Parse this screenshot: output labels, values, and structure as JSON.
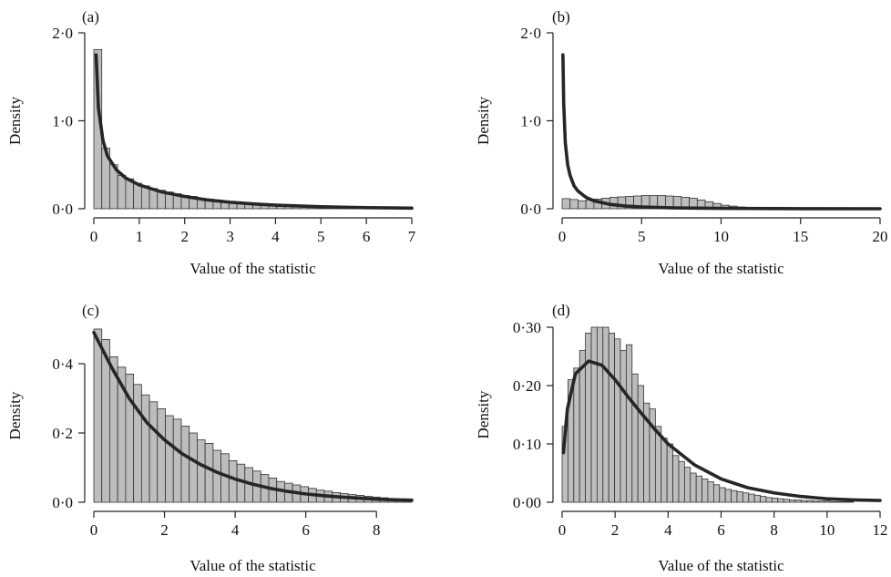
{
  "chart_data": [
    {
      "panel": "(a)",
      "type": "bar",
      "title": "",
      "xlabel": "Value of the statistic",
      "ylabel": "Density",
      "xlim": [
        0,
        7
      ],
      "ylim": [
        0,
        2.0
      ],
      "xticks": [
        0,
        1,
        2,
        3,
        4,
        5,
        6,
        7
      ],
      "xtick_labels": [
        "0",
        "1",
        "2",
        "3",
        "4",
        "5",
        "6",
        "7"
      ],
      "yticks": [
        0,
        1,
        2
      ],
      "ytick_labels": [
        "0·0",
        "1·0",
        "2·0"
      ],
      "histogram": {
        "bin_start": 0,
        "bin_width": 0.175,
        "values": [
          1.81,
          0.69,
          0.5,
          0.38,
          0.34,
          0.29,
          0.26,
          0.23,
          0.21,
          0.19,
          0.17,
          0.15,
          0.14,
          0.12,
          0.11,
          0.1,
          0.09,
          0.08,
          0.07,
          0.065,
          0.06,
          0.05,
          0.045,
          0.04,
          0.035,
          0.03,
          0.03,
          0.025,
          0.02,
          0.02,
          0.018,
          0.015,
          0.013,
          0.012,
          0.01,
          0.009,
          0.008,
          0.007,
          0.006,
          0.005
        ]
      },
      "curve": {
        "x": [
          0.05,
          0.1,
          0.2,
          0.3,
          0.5,
          0.7,
          1.0,
          1.5,
          2.0,
          2.5,
          3.0,
          3.5,
          4.0,
          5.0,
          6.0,
          7.0
        ],
        "y": [
          1.75,
          1.15,
          0.78,
          0.6,
          0.44,
          0.35,
          0.27,
          0.19,
          0.14,
          0.1,
          0.074,
          0.055,
          0.041,
          0.023,
          0.012,
          0.007
        ]
      }
    },
    {
      "panel": "(b)",
      "type": "bar",
      "title": "",
      "xlabel": "Value of the statistic",
      "ylabel": "Density",
      "xlim": [
        0,
        20
      ],
      "ylim": [
        0,
        2.0
      ],
      "xticks": [
        0,
        5,
        10,
        15,
        20
      ],
      "xtick_labels": [
        "0",
        "5",
        "10",
        "15",
        "20"
      ],
      "yticks": [
        0,
        1,
        2
      ],
      "ytick_labels": [
        "0·0",
        "1·0",
        "2·0"
      ],
      "histogram": {
        "bin_start": 0,
        "bin_width": 0.5,
        "values": [
          0.115,
          0.105,
          0.09,
          0.1,
          0.11,
          0.12,
          0.13,
          0.135,
          0.14,
          0.145,
          0.15,
          0.15,
          0.15,
          0.145,
          0.14,
          0.13,
          0.12,
          0.1,
          0.08,
          0.06,
          0.04,
          0.03,
          0.02,
          0.01,
          0.006,
          0.004,
          0.003,
          0.002,
          0.001,
          0.001,
          0.0,
          0.0,
          0.0,
          0.0,
          0.0,
          0.0,
          0.0,
          0.0,
          0.0,
          0.0
        ]
      },
      "curve": {
        "x": [
          0.05,
          0.1,
          0.2,
          0.35,
          0.5,
          0.75,
          1.0,
          1.5,
          2.0,
          3.0,
          4.0,
          5.0,
          7.0,
          10.0,
          15.0,
          20.0
        ],
        "y": [
          1.75,
          1.2,
          0.75,
          0.5,
          0.38,
          0.26,
          0.2,
          0.13,
          0.09,
          0.05,
          0.03,
          0.02,
          0.01,
          0.004,
          0.001,
          0.0
        ]
      }
    },
    {
      "panel": "(c)",
      "type": "bar",
      "title": "",
      "xlabel": "Value of the statistic",
      "ylabel": "Density",
      "xlim": [
        0,
        9
      ],
      "ylim": [
        0,
        0.5
      ],
      "xticks": [
        0,
        2,
        4,
        6,
        8
      ],
      "xtick_labels": [
        "0",
        "2",
        "4",
        "6",
        "8"
      ],
      "yticks": [
        0,
        0.2,
        0.4
      ],
      "ytick_labels": [
        "0·0",
        "0·2",
        "0·4"
      ],
      "histogram": {
        "bin_start": 0,
        "bin_width": 0.225,
        "values": [
          0.51,
          0.47,
          0.42,
          0.39,
          0.37,
          0.34,
          0.31,
          0.29,
          0.27,
          0.25,
          0.24,
          0.22,
          0.2,
          0.18,
          0.17,
          0.15,
          0.14,
          0.12,
          0.11,
          0.1,
          0.09,
          0.08,
          0.07,
          0.06,
          0.055,
          0.05,
          0.045,
          0.04,
          0.035,
          0.032,
          0.028,
          0.025,
          0.022,
          0.02,
          0.017,
          0.015,
          0.013,
          0.011,
          0.009,
          0.007
        ]
      },
      "curve": {
        "x": [
          0,
          0.5,
          1,
          1.5,
          2,
          2.5,
          3,
          3.5,
          4,
          4.5,
          5,
          5.5,
          6,
          6.5,
          7,
          7.5,
          8,
          8.5,
          9
        ],
        "y": [
          0.49,
          0.39,
          0.3,
          0.23,
          0.18,
          0.14,
          0.11,
          0.086,
          0.067,
          0.052,
          0.04,
          0.031,
          0.024,
          0.019,
          0.015,
          0.012,
          0.009,
          0.007,
          0.006
        ]
      }
    },
    {
      "panel": "(d)",
      "type": "bar",
      "title": "",
      "xlabel": "Value of the statistic",
      "ylabel": "Density",
      "xlim": [
        0,
        12
      ],
      "ylim": [
        0,
        0.3
      ],
      "xticks": [
        0,
        2,
        4,
        6,
        8,
        10,
        12
      ],
      "xtick_labels": [
        "0",
        "2",
        "4",
        "6",
        "8",
        "10",
        "12"
      ],
      "yticks": [
        0,
        0.1,
        0.2,
        0.3
      ],
      "ytick_labels": [
        "0·00",
        "0·10",
        "0·20",
        "0·30"
      ],
      "histogram": {
        "bin_start": 0,
        "bin_width": 0.22,
        "values": [
          0.13,
          0.21,
          0.23,
          0.26,
          0.29,
          0.3,
          0.3,
          0.31,
          0.29,
          0.28,
          0.26,
          0.27,
          0.22,
          0.2,
          0.17,
          0.16,
          0.13,
          0.11,
          0.1,
          0.08,
          0.07,
          0.06,
          0.05,
          0.045,
          0.04,
          0.035,
          0.03,
          0.025,
          0.022,
          0.02,
          0.018,
          0.016,
          0.014,
          0.012,
          0.01,
          0.008,
          0.007,
          0.006,
          0.005,
          0.004,
          0.004,
          0.003,
          0.003,
          0.002,
          0.002,
          0.002,
          0.001,
          0.001,
          0.001,
          0.001
        ]
      },
      "curve": {
        "x": [
          0.05,
          0.2,
          0.5,
          1,
          1.5,
          2,
          2.5,
          3,
          3.5,
          4,
          5,
          6,
          7,
          8,
          9,
          10,
          11,
          12
        ],
        "y": [
          0.085,
          0.16,
          0.22,
          0.242,
          0.235,
          0.21,
          0.18,
          0.152,
          0.125,
          0.1,
          0.064,
          0.04,
          0.025,
          0.016,
          0.01,
          0.006,
          0.004,
          0.003
        ]
      }
    }
  ]
}
